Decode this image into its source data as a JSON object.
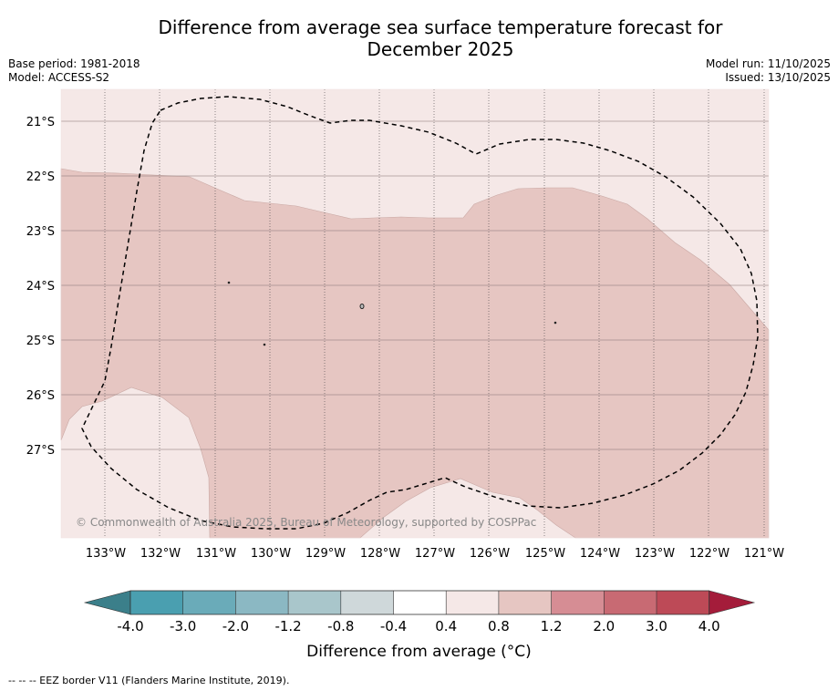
{
  "title_line1": "Difference from average sea surface temperature forecast for",
  "title_line2": "December 2025",
  "meta_left": {
    "base_period": "Base period: 1981-2018",
    "model": "Model: ACCESS-S2"
  },
  "meta_right": {
    "model_run": "Model run: 11/10/2025",
    "issued": "Issued: 13/10/2025"
  },
  "map": {
    "lat_labels": [
      "21°S",
      "22°S",
      "23°S",
      "24°S",
      "25°S",
      "26°S",
      "27°S"
    ],
    "lon_labels": [
      "133°W",
      "132°W",
      "131°W",
      "130°W",
      "129°W",
      "128°W",
      "127°W",
      "126°W",
      "125°W",
      "124°W",
      "123°W",
      "122°W",
      "121°W"
    ],
    "copyright": "© Commonwealth of Australia 2025, Bureau of Meteorology, supported by COSPPac",
    "colors": {
      "warm_light": "#f5e8e7",
      "warm_medium": "#e6c6c2"
    }
  },
  "colorbar": {
    "ticks": [
      "-4.0",
      "-3.0",
      "-2.0",
      "-1.2",
      "-0.8",
      "-0.4",
      "0.4",
      "0.8",
      "1.2",
      "2.0",
      "3.0",
      "4.0"
    ],
    "colors": [
      "#4a9fb0",
      "#6aabb9",
      "#8bb8c3",
      "#a9c6cb",
      "#cfd8da",
      "#ffffff",
      "#f5e8e7",
      "#e6c6c2",
      "#d68d94",
      "#c86a73",
      "#bd4a57"
    ],
    "under_color": "#3b7f8a",
    "over_color": "#a41c3a",
    "label": "Difference from average (°C)"
  },
  "footer": "--  --  -- EEZ border V11 (Flanders Marine Institute, 2019)."
}
